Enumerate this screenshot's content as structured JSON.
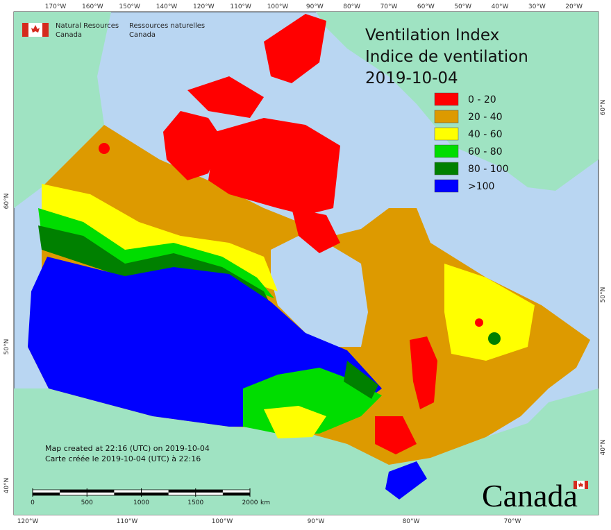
{
  "header": {
    "org_en": "Natural Resources",
    "org_en2": "Canada",
    "org_fr": "Ressources naturelles",
    "org_fr2": "Canada"
  },
  "title": {
    "line1": "Ventilation Index",
    "line2": "Indice de ventilation",
    "date": "2019-10-04"
  },
  "legend": [
    {
      "label": "0 - 20",
      "color": "#ff0000"
    },
    {
      "label": "20 - 40",
      "color": "#dd9a00"
    },
    {
      "label": "40 - 60",
      "color": "#ffff00"
    },
    {
      "label": "60 - 80",
      "color": "#00dd00"
    },
    {
      "label": "80 - 100",
      "color": "#008000"
    },
    {
      "label": ">100",
      "color": "#0000ff"
    }
  ],
  "graticule": {
    "top": [
      "170°W",
      "160°W",
      "150°W",
      "140°W",
      "120°W",
      "110°W",
      "100°W",
      "90°W",
      "80°W",
      "70°W",
      "60°W",
      "50°W",
      "40°W",
      "30°W",
      "20°W"
    ],
    "bottom": [
      "120°W",
      "110°W",
      "100°W",
      "90°W",
      "80°W",
      "70°W"
    ],
    "left": [
      "60°N",
      "50°N",
      "40°N"
    ],
    "right": [
      "60°N",
      "50°N",
      "40°N"
    ]
  },
  "credits": [
    "Map created at 22:16 (UTC) on 2019-10-04",
    "Carte créée le 2019-10-04 (UTC) à 22:16"
  ],
  "scale_bar": {
    "ticks": [
      0,
      500,
      1000,
      1500,
      2000
    ],
    "unit": "km"
  },
  "wordmark": "Canada"
}
